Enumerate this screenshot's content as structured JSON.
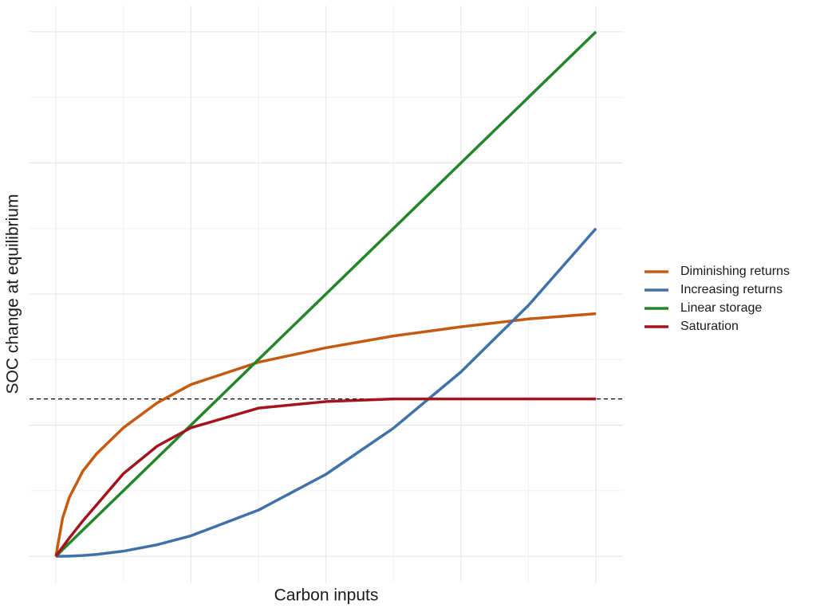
{
  "chart_data": {
    "type": "line",
    "x_label": "Carbon inputs",
    "y_label": "SOC change at equilibrium",
    "x": [
      0,
      0.05,
      0.1,
      0.2,
      0.3,
      0.5,
      0.75,
      1,
      1.5,
      2,
      2.5,
      3,
      3.5,
      4
    ],
    "series": [
      {
        "name": "Diminishing returns",
        "color": "#c55a11",
        "values": [
          0,
          0.29,
          0.45,
          0.65,
          0.78,
          0.98,
          1.17,
          1.31,
          1.48,
          1.59,
          1.68,
          1.75,
          1.81,
          1.85
        ]
      },
      {
        "name": "Increasing returns",
        "color": "#4071a8",
        "values": [
          0,
          0.0004,
          0.0016,
          0.006,
          0.014,
          0.039,
          0.088,
          0.156,
          0.352,
          0.625,
          0.977,
          1.406,
          1.914,
          2.5
        ]
      },
      {
        "name": "Linear storage",
        "color": "#23862a",
        "values": [
          0,
          0.05,
          0.1,
          0.2,
          0.3,
          0.5,
          0.75,
          1,
          1.5,
          2,
          2.5,
          3,
          3.5,
          4
        ]
      },
      {
        "name": "Saturation",
        "color": "#a3141e",
        "values": [
          0,
          0.07,
          0.14,
          0.27,
          0.39,
          0.63,
          0.84,
          0.98,
          1.13,
          1.18,
          1.2,
          1.2,
          1.2,
          1.2
        ]
      }
    ],
    "hline": 1.2,
    "xlim": [
      -0.195,
      4.2
    ],
    "ylim": [
      -0.2,
      4.2
    ],
    "xticks": [
      0,
      0.5,
      1,
      1.5,
      2,
      2.5,
      3,
      3.5,
      4
    ],
    "yticks": [
      0,
      0.5,
      1,
      1.5,
      2,
      2.5,
      3,
      3.5,
      4
    ],
    "grid": true,
    "legend": "right"
  }
}
